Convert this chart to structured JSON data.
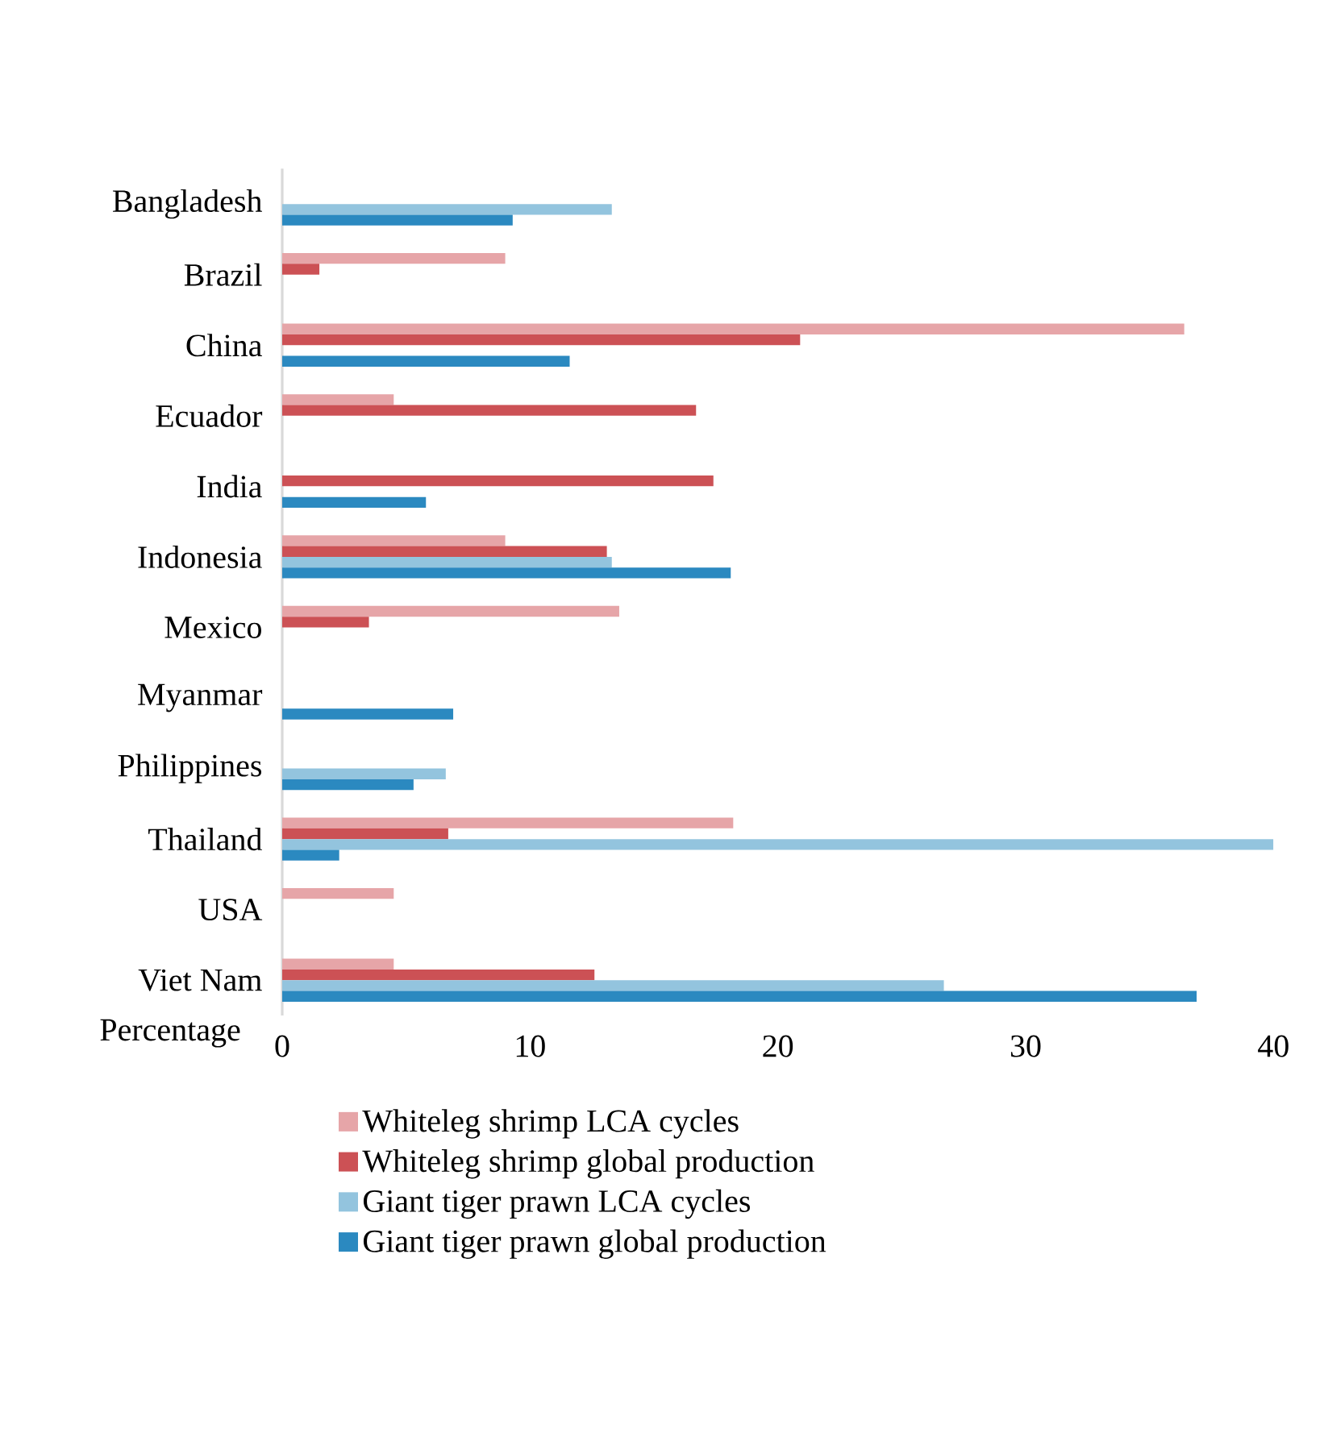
{
  "chart_data": {
    "type": "bar",
    "orientation": "horizontal",
    "xlabel": "Percentage",
    "categories": [
      "Bangladesh",
      "Brazil",
      "China",
      "Ecuador",
      "India",
      "Indonesia",
      "Mexico",
      "Myanmar",
      "Philippines",
      "Thailand",
      "USA",
      "Viet Nam"
    ],
    "series": [
      {
        "name": "Whiteleg shrimp LCA cycles",
        "color": "#e6a5a8",
        "values": [
          null,
          9.0,
          36.4,
          4.5,
          null,
          9.0,
          13.6,
          null,
          null,
          18.2,
          4.5,
          4.5
        ]
      },
      {
        "name": "Whiteleg shrimp global production",
        "color": "#cc5155",
        "values": [
          null,
          1.5,
          20.9,
          16.7,
          17.4,
          13.1,
          3.5,
          null,
          null,
          6.7,
          null,
          12.6
        ]
      },
      {
        "name": "Giant tiger prawn LCA cycles",
        "color": "#93c4de",
        "values": [
          13.3,
          null,
          null,
          null,
          null,
          13.3,
          null,
          null,
          6.6,
          40,
          null,
          26.7
        ]
      },
      {
        "name": "Giant tiger prawn global production",
        "color": "#2b89c0",
        "values": [
          9.3,
          null,
          11.6,
          null,
          5.8,
          18.1,
          null,
          6.9,
          5.3,
          2.3,
          null,
          36.9
        ]
      }
    ],
    "xlim": [
      0,
      40
    ],
    "xticks": [
      0,
      10,
      20,
      30,
      40
    ],
    "legend": "bottom"
  }
}
